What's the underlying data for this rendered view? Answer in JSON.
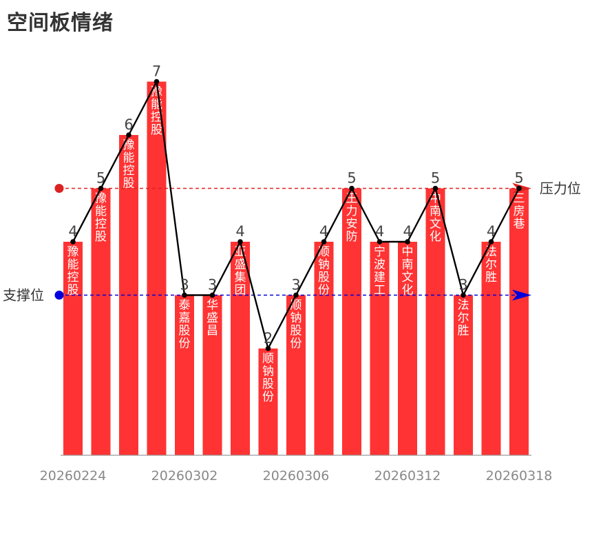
{
  "title": "空间板情绪",
  "chart_data": {
    "type": "bar",
    "title": "空间板情绪",
    "ylim": [
      0,
      7
    ],
    "bars": [
      {
        "value": 4,
        "stock": "豫能控股"
      },
      {
        "value": 5,
        "stock": "豫能控股"
      },
      {
        "value": 6,
        "stock": "豫能控股"
      },
      {
        "value": 7,
        "stock": "豫能控股"
      },
      {
        "value": 3,
        "stock": "泰嘉股份"
      },
      {
        "value": 3,
        "stock": "华盛昌"
      },
      {
        "value": 4,
        "stock": "亚盛集团"
      },
      {
        "value": 2,
        "stock": "顺钠股份"
      },
      {
        "value": 3,
        "stock": "顺钠股份"
      },
      {
        "value": 4,
        "stock": "顺钠股份"
      },
      {
        "value": 5,
        "stock": "王力安防"
      },
      {
        "value": 4,
        "stock": "宁波建工"
      },
      {
        "value": 4,
        "stock": "中南文化"
      },
      {
        "value": 5,
        "stock": "中南文化"
      },
      {
        "value": 3,
        "stock": "法尔胜"
      },
      {
        "value": 4,
        "stock": "法尔胜"
      },
      {
        "value": 5,
        "stock": "三房巷"
      }
    ],
    "x_tick_labels": [
      {
        "index": 0,
        "label": "20260224"
      },
      {
        "index": 4,
        "label": "20260302"
      },
      {
        "index": 8,
        "label": "20260306"
      },
      {
        "index": 12,
        "label": "20260312"
      },
      {
        "index": 16,
        "label": "20260318"
      }
    ],
    "reference_lines": [
      {
        "name": "压力位",
        "value": 5,
        "color": "#dd2222"
      },
      {
        "name": "支撑位",
        "value": 3,
        "color": "#0000dd"
      }
    ],
    "colors": {
      "bar": "#ff3333",
      "line": "#000000",
      "value_label": "#444444",
      "axis_label": "#888888"
    },
    "grid": false
  }
}
